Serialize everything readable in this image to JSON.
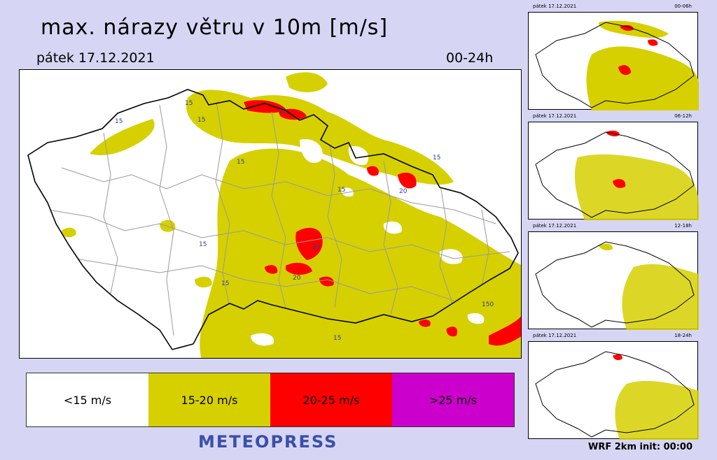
{
  "header": {
    "title": "max. nárazy větru v 10m [m/s]",
    "date": "pátek 17.12.2021",
    "range": "00-24h"
  },
  "main_map": {
    "isoline_label": "15",
    "isoline_label_2": "20",
    "isoline_label_3": "150"
  },
  "legend": [
    {
      "label": "<15 m/s",
      "color": "#ffffff"
    },
    {
      "label": "15-20 m/s",
      "color": "#d6d000"
    },
    {
      "label": "20-25 m/s",
      "color": "#ff0000"
    },
    {
      "label": ">25 m/s",
      "color": "#cc00cc"
    }
  ],
  "brand": "METEOPRESS",
  "minis": [
    {
      "date": "pátek 17.12.2021",
      "range": "00-06h"
    },
    {
      "date": "pátek 17.12.2021",
      "range": "06-12h"
    },
    {
      "date": "pátek 17.12.2021",
      "range": "12-18h"
    },
    {
      "date": "pátek 17.12.2021",
      "range": "18-24h"
    }
  ],
  "footer": "WRF  2km  init:  00:00"
}
